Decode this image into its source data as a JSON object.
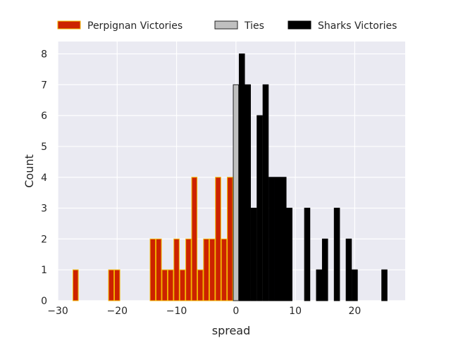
{
  "chart_data": {
    "type": "bar",
    "xlabel": "spread",
    "ylabel": "Count",
    "xlim": [
      -30,
      28.5
    ],
    "ylim": [
      0,
      8.4
    ],
    "grid": true,
    "legend_position": "top",
    "x_ticks": [
      -30,
      -20,
      -10,
      0,
      10,
      20
    ],
    "x_tick_labels": [
      "−30",
      "−20",
      "−10",
      "0",
      "10",
      "20"
    ],
    "y_ticks": [
      0,
      1,
      2,
      3,
      4,
      5,
      6,
      7,
      8
    ],
    "y_tick_labels": [
      "0",
      "1",
      "2",
      "3",
      "4",
      "5",
      "6",
      "7",
      "8"
    ],
    "background_color": "#eaeaf2",
    "grid_color": "#ffffff",
    "series": [
      {
        "name": "Perpignan Victories",
        "color": "#cc2200",
        "edge_color": "#f2b800",
        "points": [
          {
            "x": -27,
            "y": 1
          },
          {
            "x": -21,
            "y": 1
          },
          {
            "x": -20,
            "y": 1
          },
          {
            "x": -14,
            "y": 2
          },
          {
            "x": -13,
            "y": 2
          },
          {
            "x": -12,
            "y": 1
          },
          {
            "x": -11,
            "y": 1
          },
          {
            "x": -10,
            "y": 2
          },
          {
            "x": -9,
            "y": 1
          },
          {
            "x": -8,
            "y": 2
          },
          {
            "x": -7,
            "y": 4
          },
          {
            "x": -6,
            "y": 1
          },
          {
            "x": -5,
            "y": 2
          },
          {
            "x": -4,
            "y": 2
          },
          {
            "x": -3,
            "y": 4
          },
          {
            "x": -2,
            "y": 2
          },
          {
            "x": -1,
            "y": 4
          }
        ]
      },
      {
        "name": "Ties",
        "color": "#c0c0c0",
        "edge_color": "#222222",
        "points": [
          {
            "x": 0,
            "y": 7
          }
        ]
      },
      {
        "name": "Sharks Victories",
        "color": "#000000",
        "edge_color": "#000000",
        "points": [
          {
            "x": 1,
            "y": 8
          },
          {
            "x": 2,
            "y": 7
          },
          {
            "x": 3,
            "y": 3
          },
          {
            "x": 4,
            "y": 6
          },
          {
            "x": 5,
            "y": 7
          },
          {
            "x": 6,
            "y": 4
          },
          {
            "x": 7,
            "y": 4
          },
          {
            "x": 8,
            "y": 4
          },
          {
            "x": 9,
            "y": 3
          },
          {
            "x": 12,
            "y": 3
          },
          {
            "x": 14,
            "y": 1
          },
          {
            "x": 15,
            "y": 2
          },
          {
            "x": 17,
            "y": 3
          },
          {
            "x": 19,
            "y": 2
          },
          {
            "x": 20,
            "y": 1
          },
          {
            "x": 25,
            "y": 1
          }
        ]
      }
    ]
  }
}
